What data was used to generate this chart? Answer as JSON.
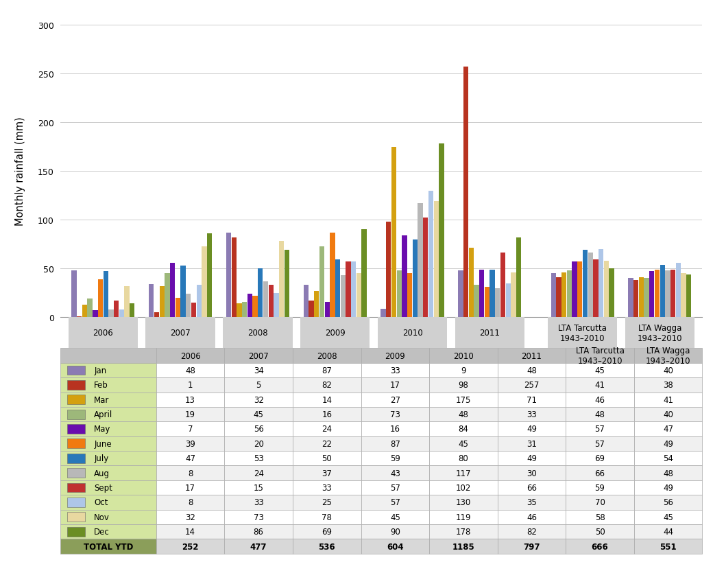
{
  "groups": [
    "2006",
    "2007",
    "2008",
    "2009",
    "2010",
    "2011",
    "LTA Tarcutta\n1943–2010",
    "LTA Wagga\n1943–2010"
  ],
  "months": [
    "Jan",
    "Feb",
    "Mar",
    "April",
    "May",
    "June",
    "July",
    "Aug",
    "Sept",
    "Oct",
    "Nov",
    "Dec"
  ],
  "month_colors": [
    "#8B7BB3",
    "#B83320",
    "#D4A010",
    "#9DB87A",
    "#6A0DAD",
    "#F07A10",
    "#2878B9",
    "#B8B8B8",
    "#C03030",
    "#AEC6E8",
    "#E8D8A0",
    "#6B8E23"
  ],
  "data": {
    "2006": [
      48,
      1,
      13,
      19,
      7,
      39,
      47,
      8,
      17,
      8,
      32,
      14
    ],
    "2007": [
      34,
      5,
      32,
      45,
      56,
      20,
      53,
      24,
      15,
      33,
      73,
      86
    ],
    "2008": [
      87,
      82,
      14,
      16,
      24,
      22,
      50,
      37,
      33,
      25,
      78,
      69
    ],
    "2009": [
      33,
      17,
      27,
      73,
      16,
      87,
      59,
      43,
      57,
      57,
      45,
      90
    ],
    "2010": [
      9,
      98,
      175,
      48,
      84,
      45,
      80,
      117,
      102,
      130,
      119,
      178
    ],
    "2011": [
      48,
      257,
      71,
      33,
      49,
      31,
      49,
      30,
      66,
      35,
      46,
      82
    ],
    "LTA Tarcutta\n1943–2010": [
      45,
      41,
      46,
      48,
      57,
      57,
      69,
      66,
      59,
      70,
      58,
      50
    ],
    "LTA Wagga\n1943–2010": [
      40,
      38,
      41,
      40,
      47,
      49,
      54,
      48,
      49,
      56,
      45,
      44
    ]
  },
  "totals": {
    "2006": 252,
    "2007": 477,
    "2008": 536,
    "2009": 604,
    "2010": 1185,
    "2011": 797,
    "LTA Tarcutta\n1943–2010": 666,
    "LTA Wagga\n1943–2010": 551
  },
  "ylabel": "Monthly rainfall (mm)",
  "ylim": [
    0,
    300
  ],
  "yticks": [
    0,
    50,
    100,
    150,
    200,
    250,
    300
  ],
  "group_label_bg": "#D0D0D0",
  "table_legend_bg": "#D4E6A0",
  "table_total_bg": "#8B9E5A",
  "header_bg": "#C0C0C0"
}
